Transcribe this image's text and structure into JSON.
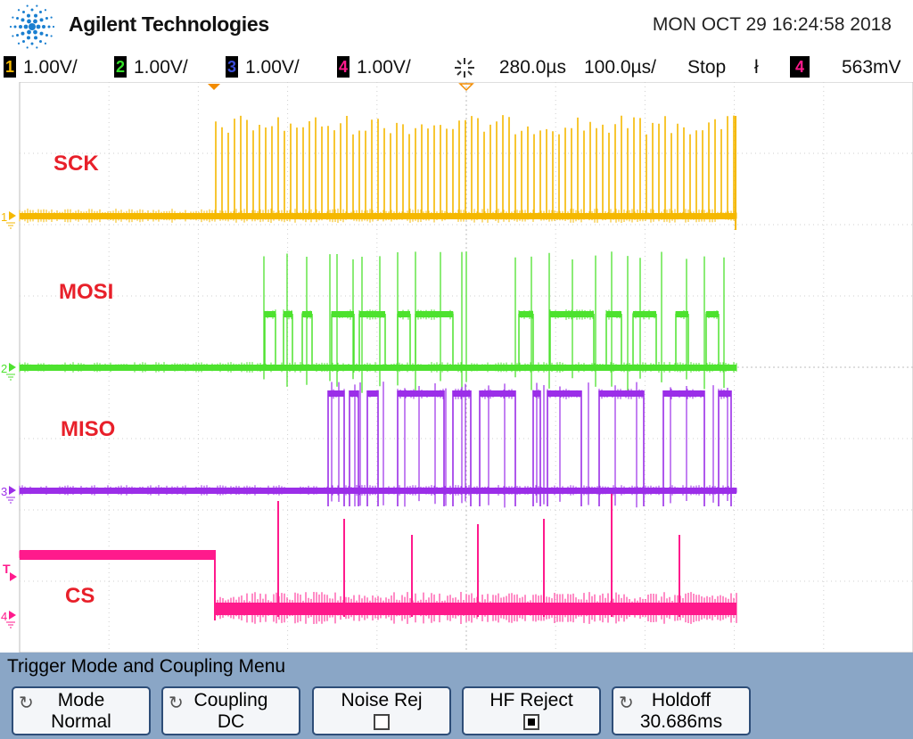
{
  "header": {
    "brand": "Agilent Technologies",
    "datetime": "MON OCT 29 16:24:58 2018",
    "logo_icon": "agilent-spark-icon"
  },
  "status": {
    "ch1": {
      "num": "1",
      "scale": "1.00V/",
      "color": "#f5b800"
    },
    "ch2": {
      "num": "2",
      "scale": "1.00V/",
      "color": "#35e02a"
    },
    "ch3": {
      "num": "3",
      "scale": "1.00V/",
      "color": "#3a4bd6"
    },
    "ch4": {
      "num": "4",
      "scale": "1.00V/",
      "color": "#ff1a8c"
    },
    "delay": "280.0µs",
    "timebase": "100.0µs/",
    "run_state": "Stop",
    "trigger_slope": "ł",
    "trigger_channel": "4",
    "trigger_level": "563mV"
  },
  "screen": {
    "labels": {
      "sck": "SCK",
      "mosi": "MOSI",
      "miso": "MISO",
      "cs": "CS"
    },
    "markers": {
      "ch1": "1",
      "ch2": "2",
      "ch3": "3",
      "ch4": "4",
      "trigger": "T"
    },
    "trace_colors": {
      "sck": "#f5b800",
      "mosi": "#4de22e",
      "miso": "#9b2ee8",
      "cs": "#ff1a8c"
    }
  },
  "menu": {
    "title": "Trigger Mode and Coupling Menu",
    "softkeys": [
      {
        "line1": "Mode",
        "line2": "Normal"
      },
      {
        "line1": "Coupling",
        "line2": "DC"
      },
      {
        "line1": "Noise Rej",
        "checked": false
      },
      {
        "line1": "HF Reject",
        "checked": true
      },
      {
        "line1": "Holdoff",
        "line2": "30.686ms"
      }
    ]
  }
}
